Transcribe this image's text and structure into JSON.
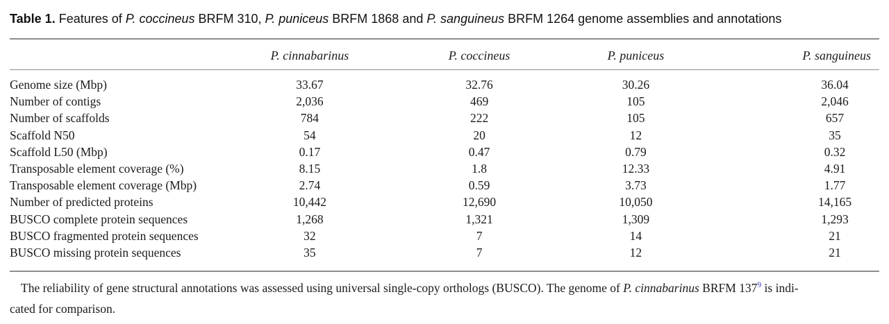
{
  "colors": {
    "text": "#1b1b1b",
    "rule": "#8c8c8c",
    "citation_link": "#3d3dbb"
  },
  "caption": {
    "parts": [
      {
        "text": "Table 1.",
        "style": "bold",
        "name": "caption-label"
      },
      {
        "text": " Features of ",
        "style": "normal",
        "name": "caption-text"
      },
      {
        "text": "P. coccineus",
        "style": "italic",
        "name": "caption-species"
      },
      {
        "text": " BRFM 310, ",
        "style": "normal",
        "name": "caption-text"
      },
      {
        "text": "P. puniceus",
        "style": "italic",
        "name": "caption-species"
      },
      {
        "text": " BRFM 1868 and ",
        "style": "normal",
        "name": "caption-text"
      },
      {
        "text": "P. sanguineus",
        "style": "italic",
        "name": "caption-species"
      },
      {
        "text": " BRFM 1264 genome assemblies and annotations",
        "style": "normal",
        "name": "caption-text"
      }
    ]
  },
  "table": {
    "columns": [
      {
        "label": "",
        "name": "column-header-feature"
      },
      {
        "label": "P. cinnabarinus",
        "name": "column-header-p-cinnabarinus"
      },
      {
        "label": "P. coccineus",
        "name": "column-header-p-coccineus"
      },
      {
        "label": "P. puniceus",
        "name": "column-header-p-puniceus"
      },
      {
        "label": "P. sanguineus",
        "name": "column-header-p-sanguineus"
      }
    ],
    "rows": [
      {
        "feature": "Genome size (Mbp)",
        "values": [
          "33.67",
          "32.76",
          "30.26",
          "36.04"
        ]
      },
      {
        "feature": "Number of contigs",
        "values": [
          "2,036",
          "469",
          "105",
          "2,046"
        ]
      },
      {
        "feature": "Number of scaffolds",
        "values": [
          "784",
          "222",
          "105",
          "657"
        ]
      },
      {
        "feature": "Scaffold N50",
        "values": [
          "54",
          "20",
          "12",
          "35"
        ]
      },
      {
        "feature": "Scaffold L50 (Mbp)",
        "values": [
          "0.17",
          "0.47",
          "0.79",
          "0.32"
        ]
      },
      {
        "feature": "Transposable element coverage (%)",
        "values": [
          "8.15",
          "1.8",
          "12.33",
          "4.91"
        ]
      },
      {
        "feature": "Transposable element coverage (Mbp)",
        "values": [
          "2.74",
          "0.59",
          "3.73",
          "1.77"
        ]
      },
      {
        "feature": "Number of predicted proteins",
        "values": [
          "10,442",
          "12,690",
          "10,050",
          "14,165"
        ]
      },
      {
        "feature": "BUSCO complete protein sequences",
        "values": [
          "1,268",
          "1,321",
          "1,309",
          "1,293"
        ]
      },
      {
        "feature": "BUSCO fragmented protein sequences",
        "values": [
          "32",
          "7",
          "14",
          "21"
        ]
      },
      {
        "feature": "BUSCO missing protein sequences",
        "values": [
          "35",
          "7",
          "12",
          "21"
        ]
      }
    ]
  },
  "footnote": {
    "parts": [
      {
        "text": "The reliability of gene structural annotations was assessed using universal single-copy orthologs (BUSCO). The genome of ",
        "style": "normal",
        "name": "footnote-text"
      },
      {
        "text": "P. cinnabarinus",
        "style": "italic",
        "name": "footnote-species"
      },
      {
        "text": " BRFM 137",
        "style": "normal",
        "name": "footnote-text"
      },
      {
        "text": "9",
        "style": "sup",
        "name": "citation-ref-9",
        "interactable": true
      },
      {
        "text": " is indi-",
        "style": "normal",
        "name": "footnote-text"
      },
      {
        "text": "cated for comparison.",
        "style": "normal",
        "name": "footnote-text",
        "break_before": true
      }
    ]
  }
}
